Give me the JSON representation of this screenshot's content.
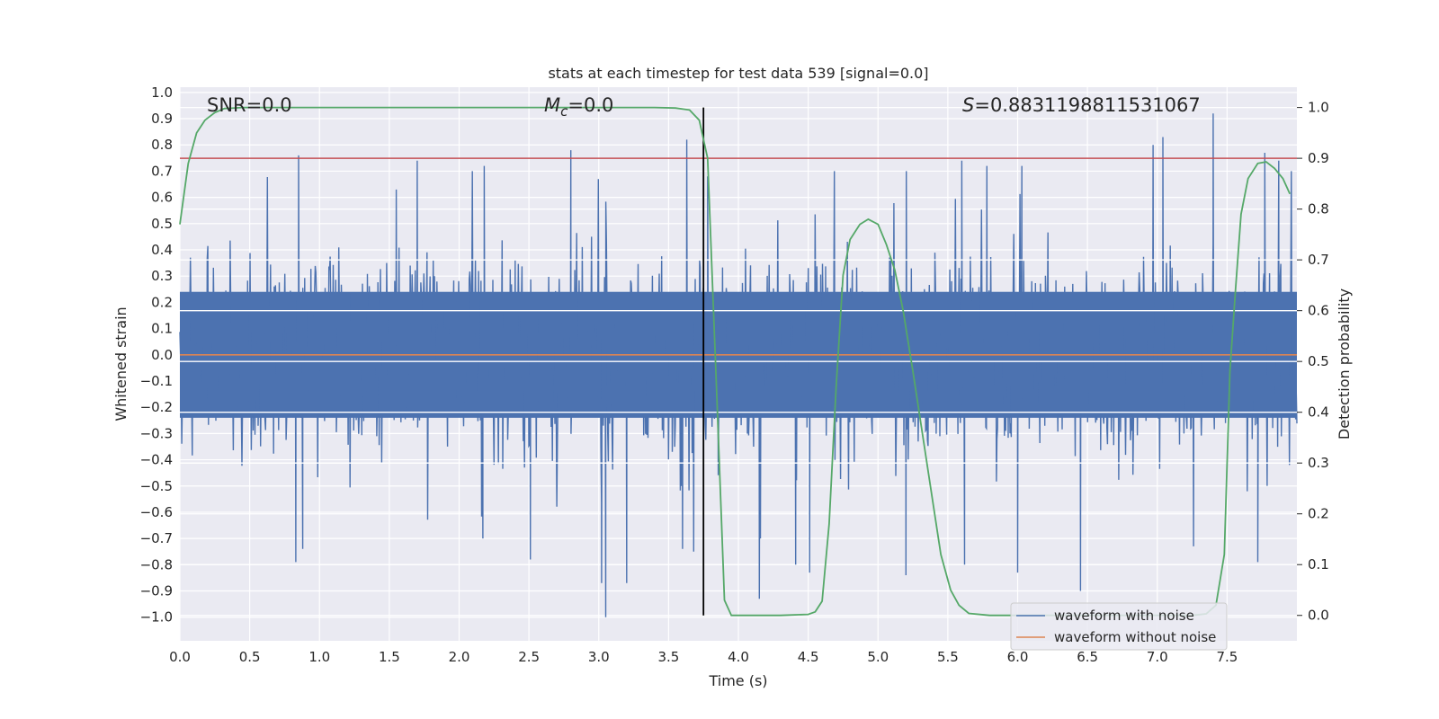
{
  "chart_data": {
    "type": "line",
    "title": "stats at each timestep for test data 539 [signal=0.0]",
    "xlabel": "Time (s)",
    "ylabel": "Whitened strain",
    "y2label": "Detection probability",
    "xlim": [
      0.0,
      8.0
    ],
    "ylim": [
      -1.09,
      1.02
    ],
    "y2lim": [
      -0.05,
      1.04
    ],
    "x_ticks": [
      "0.0",
      "0.5",
      "1.0",
      "1.5",
      "2.0",
      "2.5",
      "3.0",
      "3.5",
      "4.0",
      "4.5",
      "5.0",
      "5.5",
      "6.0",
      "6.5",
      "7.0",
      "7.5"
    ],
    "x_tick_values": [
      0.0,
      0.5,
      1.0,
      1.5,
      2.0,
      2.5,
      3.0,
      3.5,
      4.0,
      4.5,
      5.0,
      5.5,
      6.0,
      6.5,
      7.0,
      7.5
    ],
    "y_ticks": [
      "1.0",
      "0.9",
      "0.8",
      "0.7",
      "0.6",
      "0.5",
      "0.4",
      "0.3",
      "0.2",
      "0.1",
      "0.0",
      "−0.1",
      "−0.2",
      "−0.3",
      "−0.4",
      "−0.5",
      "−0.6",
      "−0.7",
      "−0.8",
      "−0.9",
      "−1.0"
    ],
    "y_tick_values": [
      1.0,
      0.9,
      0.8,
      0.7,
      0.6,
      0.5,
      0.4,
      0.3,
      0.2,
      0.1,
      0.0,
      -0.1,
      -0.2,
      -0.3,
      -0.4,
      -0.5,
      -0.6,
      -0.7,
      -0.8,
      -0.9,
      -1.0
    ],
    "y2_ticks": [
      "1.0",
      "0.9",
      "0.8",
      "0.7",
      "0.6",
      "0.5",
      "0.4",
      "0.3",
      "0.2",
      "0.1",
      "0.0"
    ],
    "y2_tick_values": [
      1.0,
      0.9,
      0.8,
      0.7,
      0.6,
      0.5,
      0.4,
      0.3,
      0.2,
      0.1,
      0.0
    ],
    "annotations": {
      "snr": "SNR=0.0",
      "mc_symbol": "M",
      "mc_subscript": "c",
      "mc_value": "=0.0",
      "s_symbol": "S",
      "s_value": "=0.8831198811531067"
    },
    "threshold": 0.9,
    "event_time": 3.75,
    "series": [
      {
        "name": "waveform with noise",
        "color": "#4c72b0",
        "axis": "left",
        "description": "whitened noisy strain, approx. +/-0.3 typical, peaks to +/-1.0",
        "seed": 539,
        "samples": 1800,
        "spikes": [
          {
            "x": 0.85,
            "y": 0.76
          },
          {
            "x": 0.83,
            "y": -0.79
          },
          {
            "x": 0.88,
            "y": -0.74
          },
          {
            "x": 1.7,
            "y": 0.74
          },
          {
            "x": 1.55,
            "y": 0.63
          },
          {
            "x": 2.18,
            "y": 0.72
          },
          {
            "x": 2.17,
            "y": -0.7
          },
          {
            "x": 2.51,
            "y": -0.78
          },
          {
            "x": 2.8,
            "y": 0.78
          },
          {
            "x": 3.05,
            "y": -1.0
          },
          {
            "x": 3.02,
            "y": -0.87
          },
          {
            "x": 3.2,
            "y": -0.87
          },
          {
            "x": 3.6,
            "y": -0.74
          },
          {
            "x": 3.63,
            "y": 0.82
          },
          {
            "x": 3.68,
            "y": -0.75
          },
          {
            "x": 3.78,
            "y": 0.68
          },
          {
            "x": 4.15,
            "y": -0.93
          },
          {
            "x": 4.41,
            "y": -0.8
          },
          {
            "x": 4.51,
            "y": -0.83
          },
          {
            "x": 5.2,
            "y": -0.84
          },
          {
            "x": 5.6,
            "y": 0.74
          },
          {
            "x": 5.62,
            "y": -0.8
          },
          {
            "x": 5.78,
            "y": 0.72
          },
          {
            "x": 6.0,
            "y": -0.83
          },
          {
            "x": 6.03,
            "y": 0.72
          },
          {
            "x": 6.45,
            "y": -0.9
          },
          {
            "x": 6.97,
            "y": 0.8
          },
          {
            "x": 7.04,
            "y": 0.83
          },
          {
            "x": 7.4,
            "y": 0.92
          },
          {
            "x": 7.26,
            "y": -0.73
          },
          {
            "x": 7.72,
            "y": -0.79
          },
          {
            "x": 7.77,
            "y": 0.77
          },
          {
            "x": 7.87,
            "y": 0.74
          }
        ]
      },
      {
        "name": "waveform without noise",
        "color": "#dd8452",
        "axis": "left",
        "x": [
          0.0,
          8.0
        ],
        "y": [
          0.0,
          0.0
        ]
      },
      {
        "name": "detection probability",
        "color": "#55a868",
        "axis": "right",
        "x": [
          0.0,
          0.06,
          0.12,
          0.18,
          0.25,
          0.32,
          0.45,
          1.0,
          2.0,
          3.0,
          3.4,
          3.55,
          3.65,
          3.72,
          3.78,
          3.85,
          3.9,
          3.95,
          4.1,
          4.3,
          4.5,
          4.55,
          4.6,
          4.65,
          4.7,
          4.75,
          4.8,
          4.87,
          4.93,
          5.0,
          5.06,
          5.12,
          5.18,
          5.25,
          5.35,
          5.45,
          5.52,
          5.58,
          5.65,
          5.8,
          6.1,
          6.5,
          7.0,
          7.25,
          7.35,
          7.42,
          7.48,
          7.52,
          7.56,
          7.6,
          7.65,
          7.72,
          7.78,
          7.84,
          7.9,
          7.95
        ],
        "y": [
          0.77,
          0.89,
          0.95,
          0.975,
          0.99,
          0.998,
          1.0,
          1.0,
          1.0,
          1.0,
          1.0,
          0.999,
          0.995,
          0.975,
          0.9,
          0.4,
          0.03,
          0.0,
          0.0,
          0.0,
          0.002,
          0.007,
          0.028,
          0.18,
          0.45,
          0.67,
          0.74,
          0.77,
          0.78,
          0.77,
          0.73,
          0.68,
          0.6,
          0.48,
          0.3,
          0.12,
          0.05,
          0.02,
          0.004,
          0.0,
          0.0,
          0.0,
          0.0,
          0.0,
          0.003,
          0.02,
          0.12,
          0.48,
          0.64,
          0.79,
          0.86,
          0.89,
          0.893,
          0.88,
          0.86,
          0.83
        ]
      },
      {
        "name": "threshold",
        "color": "#c44e52",
        "axis": "right",
        "x": [
          0.0,
          8.0
        ],
        "y": [
          0.9,
          0.9
        ]
      }
    ],
    "legend": {
      "placement": "lower-right",
      "entries": [
        {
          "label": "waveform with noise",
          "color": "#4c72b0"
        },
        {
          "label": "waveform without noise",
          "color": "#dd8452"
        }
      ]
    },
    "style": {
      "background": "#eaeaf2",
      "grid": "#ffffff",
      "grid_on": true
    }
  }
}
